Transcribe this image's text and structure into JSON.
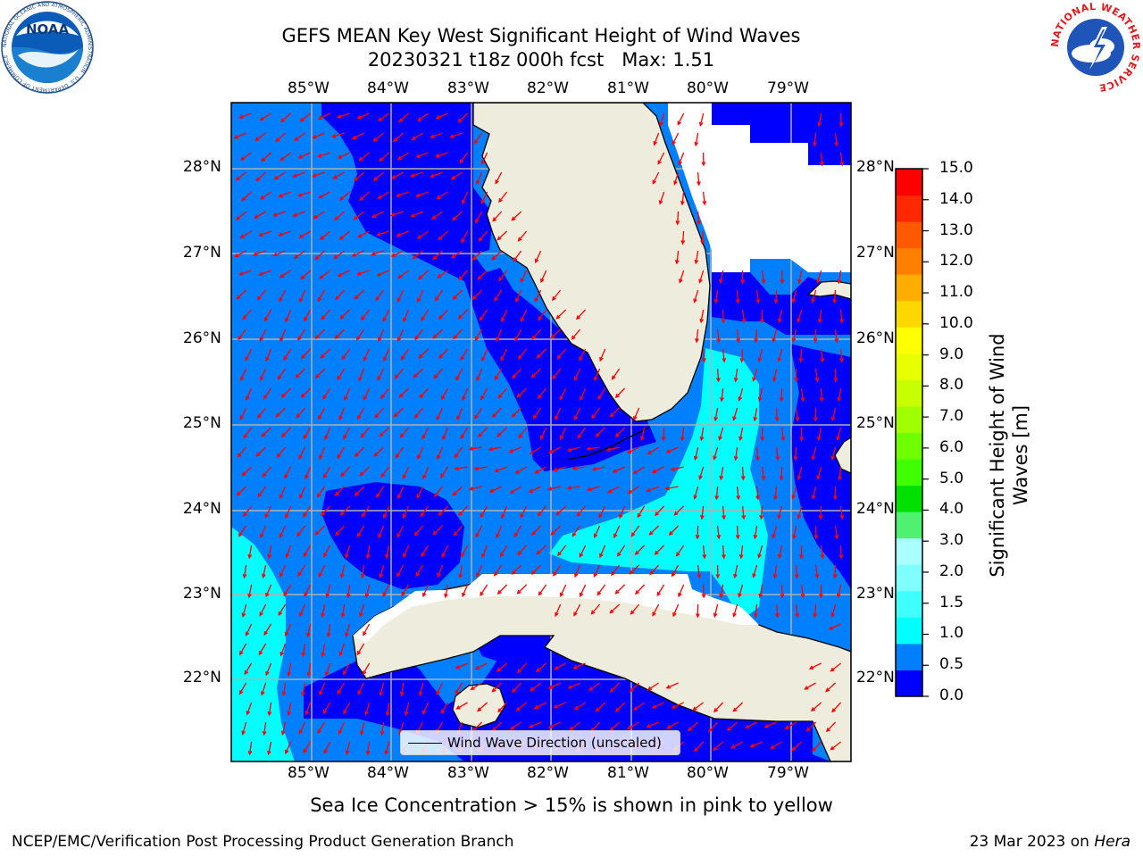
{
  "title": {
    "line1": "GEFS MEAN Key West Significant Height of Wind Waves",
    "line2": "20230321 t18z 000h fcst   Max: 1.51"
  },
  "map": {
    "lon_labels": [
      "85°W",
      "84°W",
      "83°W",
      "82°W",
      "81°W",
      "80°W",
      "79°W"
    ],
    "lat_labels": [
      "28°N",
      "27°N",
      "26°N",
      "25°N",
      "24°N",
      "23°N",
      "22°N"
    ],
    "lon_range": [
      -86.0,
      -78.25
    ],
    "lat_range": [
      21.0,
      28.75
    ],
    "legend_label": "Wind Wave Direction (unscaled)",
    "land_color": "#eeeddd",
    "arrow_color": "#ff0000",
    "grid_color": "#b0b0b0"
  },
  "colorbar": {
    "title_line1": "Significant Height of Wind",
    "title_line2": "Waves [m]",
    "tick_labels": [
      "15.0",
      "14.0",
      "13.0",
      "12.0",
      "11.0",
      "10.0",
      "9.0",
      "8.0",
      "7.0",
      "6.0",
      "5.0",
      "4.0",
      "3.0",
      "2.0",
      "1.5",
      "1.0",
      "0.5",
      "0.0"
    ],
    "colors": [
      "#0000ff",
      "#0080ff",
      "#00ffff",
      "#40ffff",
      "#80ffff",
      "#aaffff",
      "#50f070",
      "#00e000",
      "#40ff00",
      "#70ff00",
      "#a0ff00",
      "#c8ff00",
      "#e8ff00",
      "#ffff00",
      "#ffd700",
      "#ffae00",
      "#ff8000",
      "#ff5a00",
      "#ff2800",
      "#ff0000"
    ]
  },
  "note": "Sea Ice Concentration > 15% is shown in pink to yellow",
  "footer": {
    "left": "NCEP/EMC/Verification Post Processing Product Generation Branch",
    "date": "23 Mar 2023 on ",
    "machine": "Hera"
  },
  "logos": {
    "noaa_text": "NOAA",
    "noaa_ring": "NATIONAL OCEANIC AND ATMOSPHERIC ADMINISTRATION · U.S. DEPARTMENT OF COMMERCE",
    "nws_ring": "NATIONAL WEATHER SERVICE"
  }
}
